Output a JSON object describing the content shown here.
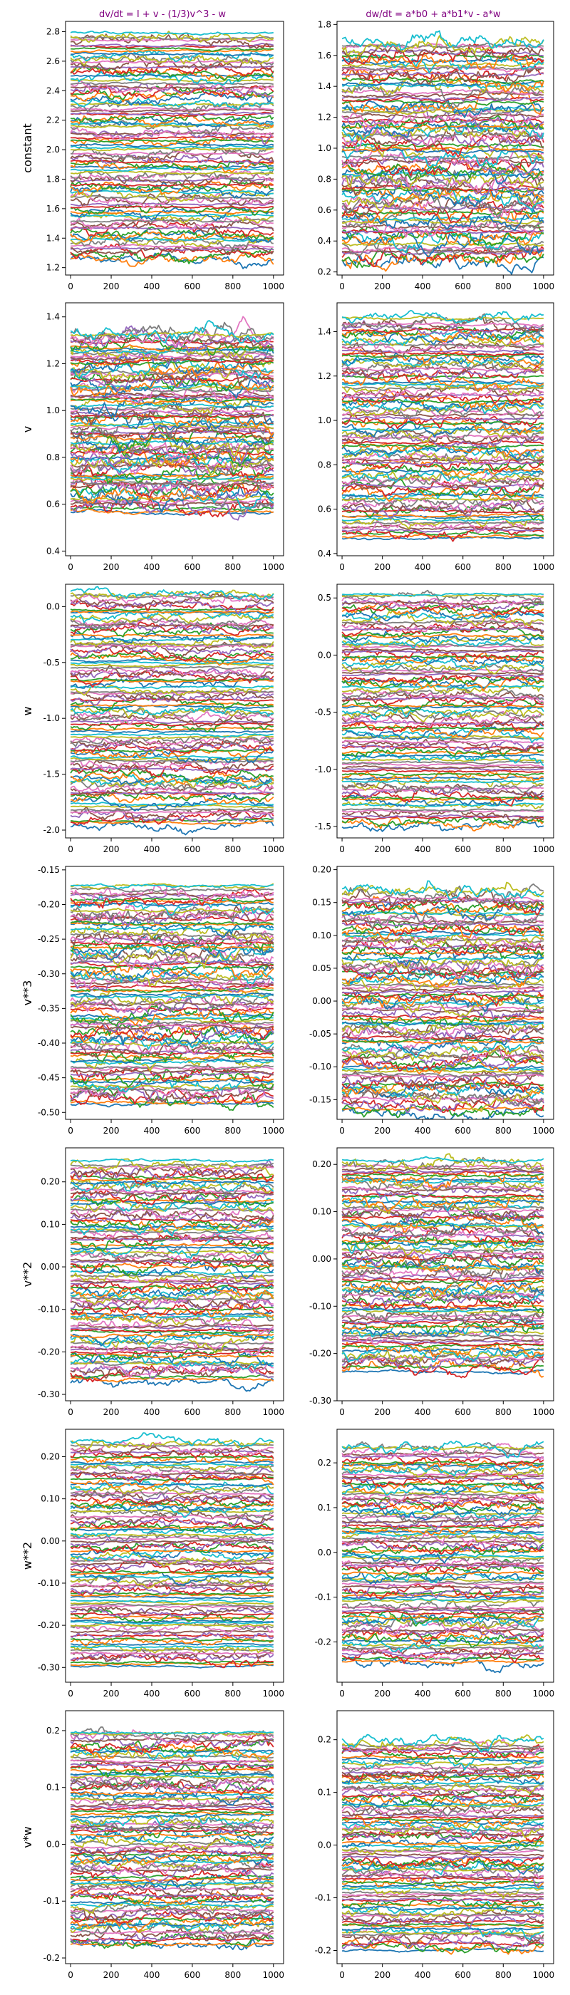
{
  "figure": {
    "col_titles": [
      "dv/dt = I + v - (1/3)v^3 - w",
      "dw/dt = a*b0 + a*b1*v - a*w"
    ],
    "row_labels": [
      "constant",
      "v",
      "w",
      "v**3",
      "v**2",
      "w**2",
      "v*w"
    ],
    "palette": [
      "#1f77b4",
      "#ff7f0e",
      "#2ca02c",
      "#d62728",
      "#9467bd",
      "#8c564b",
      "#e377c2",
      "#7f7f7f",
      "#bcbd22",
      "#17becf"
    ],
    "title_color": "#800080"
  },
  "chart_data": [
    {
      "type": "line",
      "row": "constant",
      "column": 1,
      "title": "dv/dt = I + v - (1/3)v^3 - w",
      "ylabel": "constant",
      "xlim": [
        -25,
        1050
      ],
      "ylim": [
        1.15,
        2.87
      ],
      "yticks": [
        1.2,
        1.4,
        1.6,
        1.8,
        2.0,
        2.2,
        2.4,
        2.6,
        2.8
      ],
      "xticks": [
        0,
        200,
        400,
        600,
        800,
        1000
      ],
      "series_count": 100,
      "series_range": [
        1.25,
        2.8
      ],
      "noise": 0.02,
      "x": [
        0,
        1000
      ]
    },
    {
      "type": "line",
      "row": "constant",
      "column": 2,
      "title": "dw/dt = a*b0 + a*b1*v - a*w",
      "ylabel": "",
      "xlim": [
        -25,
        1050
      ],
      "ylim": [
        0.18,
        1.82
      ],
      "yticks": [
        0.2,
        0.4,
        0.6,
        0.8,
        1.0,
        1.2,
        1.4,
        1.6,
        1.8
      ],
      "xticks": [
        0,
        200,
        400,
        600,
        800,
        1000
      ],
      "series_count": 100,
      "series_range": [
        0.26,
        1.7
      ],
      "noise": 0.03,
      "x": [
        0,
        1000
      ]
    },
    {
      "type": "line",
      "row": "v",
      "column": 1,
      "title": "",
      "ylabel": "v",
      "xlim": [
        -25,
        1050
      ],
      "ylim": [
        0.38,
        1.46
      ],
      "yticks": [
        0.4,
        0.6,
        0.8,
        1.0,
        1.2,
        1.4
      ],
      "xticks": [
        0,
        200,
        400,
        600,
        800,
        1000
      ],
      "series_count": 100,
      "series_range": [
        0.56,
        1.34
      ],
      "noise": 0.02,
      "x": [
        0,
        1000
      ]
    },
    {
      "type": "line",
      "row": "v",
      "column": 2,
      "title": "",
      "ylabel": "",
      "xlim": [
        -25,
        1050
      ],
      "ylim": [
        0.39,
        1.53
      ],
      "yticks": [
        0.4,
        0.6,
        0.8,
        1.0,
        1.2,
        1.4
      ],
      "xticks": [
        0,
        200,
        400,
        600,
        800,
        1000
      ],
      "series_count": 100,
      "series_range": [
        0.46,
        1.47
      ],
      "noise": 0.015,
      "x": [
        0,
        1000
      ]
    },
    {
      "type": "line",
      "row": "w",
      "column": 1,
      "title": "",
      "ylabel": "w",
      "xlim": [
        -25,
        1050
      ],
      "ylim": [
        -2.07,
        0.2
      ],
      "yticks": [
        -2.0,
        -1.5,
        -1.0,
        -0.5,
        0.0
      ],
      "xticks": [
        0,
        200,
        400,
        600,
        800,
        1000
      ],
      "series_count": 100,
      "series_range": [
        -1.97,
        0.14
      ],
      "noise": 0.025,
      "x": [
        0,
        1000
      ]
    },
    {
      "type": "line",
      "row": "w",
      "column": 2,
      "title": "",
      "ylabel": "",
      "xlim": [
        -25,
        1050
      ],
      "ylim": [
        -1.6,
        0.62
      ],
      "yticks": [
        -1.5,
        -1.0,
        -0.5,
        0.0,
        0.5
      ],
      "xticks": [
        0,
        200,
        400,
        600,
        800,
        1000
      ],
      "series_count": 100,
      "series_range": [
        -1.5,
        0.55
      ],
      "noise": 0.025,
      "x": [
        0,
        1000
      ]
    },
    {
      "type": "line",
      "row": "v**3",
      "column": 1,
      "title": "",
      "ylabel": "v**3",
      "xlim": [
        -25,
        1050
      ],
      "ylim": [
        -0.51,
        -0.145
      ],
      "yticks": [
        -0.5,
        -0.45,
        -0.4,
        -0.35,
        -0.3,
        -0.25,
        -0.2,
        -0.15
      ],
      "xticks": [
        0,
        200,
        400,
        600,
        800,
        1000
      ],
      "series_count": 100,
      "series_range": [
        -0.49,
        -0.17
      ],
      "noise": 0.006,
      "x": [
        0,
        1000
      ]
    },
    {
      "type": "line",
      "row": "v**3",
      "column": 2,
      "title": "",
      "ylabel": "",
      "xlim": [
        -25,
        1050
      ],
      "ylim": [
        -0.18,
        0.205
      ],
      "yticks": [
        -0.15,
        -0.1,
        -0.05,
        0.0,
        0.05,
        0.1,
        0.15,
        0.2
      ],
      "xticks": [
        0,
        200,
        400,
        600,
        800,
        1000
      ],
      "series_count": 100,
      "series_range": [
        -0.17,
        0.17
      ],
      "noise": 0.006,
      "x": [
        0,
        1000
      ]
    },
    {
      "type": "line",
      "row": "v**2",
      "column": 1,
      "title": "",
      "ylabel": "v**2",
      "xlim": [
        -25,
        1050
      ],
      "ylim": [
        -0.315,
        0.28
      ],
      "yticks": [
        -0.3,
        -0.2,
        -0.1,
        0.0,
        0.1,
        0.2
      ],
      "xticks": [
        0,
        200,
        400,
        600,
        800,
        1000
      ],
      "series_count": 100,
      "series_range": [
        -0.27,
        0.25
      ],
      "noise": 0.008,
      "x": [
        0,
        1000
      ]
    },
    {
      "type": "line",
      "row": "v**2",
      "column": 2,
      "title": "",
      "ylabel": "",
      "xlim": [
        -25,
        1050
      ],
      "ylim": [
        -0.3,
        0.235
      ],
      "yticks": [
        -0.3,
        -0.2,
        -0.1,
        0.0,
        0.1,
        0.2
      ],
      "xticks": [
        0,
        200,
        400,
        600,
        800,
        1000
      ],
      "series_count": 100,
      "series_range": [
        -0.24,
        0.21
      ],
      "noise": 0.008,
      "x": [
        0,
        1000
      ]
    },
    {
      "type": "line",
      "row": "w**2",
      "column": 1,
      "title": "",
      "ylabel": "w**2",
      "xlim": [
        -25,
        1050
      ],
      "ylim": [
        -0.335,
        0.265
      ],
      "yticks": [
        -0.3,
        -0.2,
        -0.1,
        0.0,
        0.1,
        0.2
      ],
      "xticks": [
        0,
        200,
        400,
        600,
        800,
        1000
      ],
      "series_count": 100,
      "series_range": [
        -0.3,
        0.24
      ],
      "noise": 0.006,
      "x": [
        0,
        1000
      ]
    },
    {
      "type": "line",
      "row": "w**2",
      "column": 2,
      "title": "",
      "ylabel": "",
      "xlim": [
        -25,
        1050
      ],
      "ylim": [
        -0.29,
        0.275
      ],
      "yticks": [
        -0.2,
        -0.1,
        0.0,
        0.1,
        0.2
      ],
      "xticks": [
        0,
        200,
        400,
        600,
        800,
        1000
      ],
      "series_count": 100,
      "series_range": [
        -0.25,
        0.24
      ],
      "noise": 0.007,
      "x": [
        0,
        1000
      ]
    },
    {
      "type": "line",
      "row": "v*w",
      "column": 1,
      "title": "",
      "ylabel": "v*w",
      "xlim": [
        -25,
        1050
      ],
      "ylim": [
        -0.21,
        0.235
      ],
      "yticks": [
        -0.2,
        -0.1,
        0.0,
        0.1,
        0.2
      ],
      "xticks": [
        0,
        200,
        400,
        600,
        800,
        1000
      ],
      "series_count": 100,
      "series_range": [
        -0.18,
        0.2
      ],
      "noise": 0.006,
      "x": [
        0,
        1000
      ]
    },
    {
      "type": "line",
      "row": "v*w",
      "column": 2,
      "title": "",
      "ylabel": "",
      "xlim": [
        -25,
        1050
      ],
      "ylim": [
        -0.225,
        0.255
      ],
      "yticks": [
        -0.2,
        -0.1,
        0.0,
        0.1,
        0.2
      ],
      "xticks": [
        0,
        200,
        400,
        600,
        800,
        1000
      ],
      "series_count": 100,
      "series_range": [
        -0.2,
        0.2
      ],
      "noise": 0.006,
      "x": [
        0,
        1000
      ]
    }
  ]
}
